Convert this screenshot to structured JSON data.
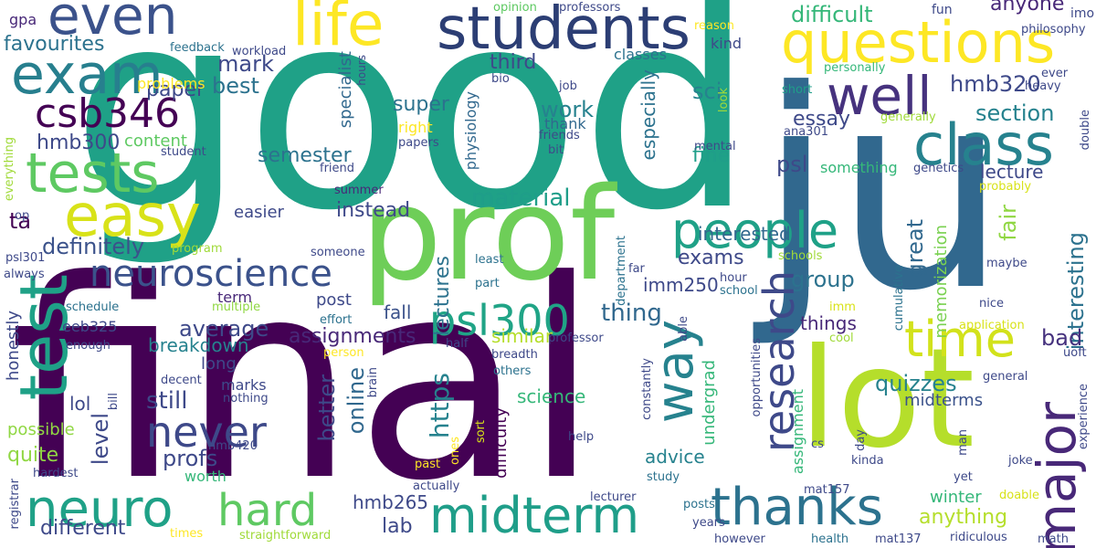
{
  "palette": [
    "#440154",
    "#46327e",
    "#365c8d",
    "#277f8e",
    "#1fa187",
    "#4ac16d",
    "#a0da39",
    "#fde725"
  ],
  "words": [
    {
      "text": "good",
      "color": "#1fa187"
    },
    {
      "text": "final",
      "color": "#440154"
    },
    {
      "text": "ju",
      "color": "#31688e"
    },
    {
      "text": "prof",
      "color": "#6ece58"
    },
    {
      "text": "lot",
      "color": "#b5de2b"
    },
    {
      "text": "test",
      "color": "#1fa187"
    },
    {
      "text": "students",
      "color": "#2c3e74"
    },
    {
      "text": "questions",
      "color": "#fde725"
    },
    {
      "text": "class",
      "color": "#26828e"
    },
    {
      "text": "even",
      "color": "#3b528b"
    },
    {
      "text": "life",
      "color": "#fde725"
    },
    {
      "text": "exam",
      "color": "#277f8e"
    },
    {
      "text": "well",
      "color": "#46327e"
    },
    {
      "text": "tests",
      "color": "#5ec962"
    },
    {
      "text": "easy",
      "color": "#d8e219"
    },
    {
      "text": "csb346",
      "color": "#440154"
    },
    {
      "text": "people",
      "color": "#1fa187"
    },
    {
      "text": "neuroscience",
      "color": "#3b528b"
    },
    {
      "text": "time",
      "color": "#d2e21b"
    },
    {
      "text": "major",
      "color": "#482878"
    },
    {
      "text": "way",
      "color": "#26828e"
    },
    {
      "text": "psl300",
      "color": "#20a486"
    },
    {
      "text": "never",
      "color": "#3e4989"
    },
    {
      "text": "neuro",
      "color": "#1fa187"
    },
    {
      "text": "hard",
      "color": "#5ec962"
    },
    {
      "text": "midterm",
      "color": "#1f9e89"
    },
    {
      "text": "thanks",
      "color": "#2c728e"
    },
    {
      "text": "research",
      "color": "#3e4989"
    },
    {
      "text": "favourites",
      "color": "#2c728e"
    },
    {
      "text": "mark",
      "color": "#3e4989"
    },
    {
      "text": "best",
      "color": "#2c728e"
    },
    {
      "text": "paper",
      "color": "#3e4989"
    },
    {
      "text": "difficult",
      "color": "#35b779"
    },
    {
      "text": "sci",
      "color": "#26828e"
    },
    {
      "text": "hmb300",
      "color": "#3e4989"
    },
    {
      "text": "definitely",
      "color": "#3b528b"
    },
    {
      "text": "ta",
      "color": "#440154"
    },
    {
      "text": "material",
      "color": "#1f9e89"
    },
    {
      "text": "hmb320",
      "color": "#3e4989"
    },
    {
      "text": "section",
      "color": "#26828e"
    },
    {
      "text": "essay",
      "color": "#3e4989"
    },
    {
      "text": "lecture",
      "color": "#3e4989"
    },
    {
      "text": "instead",
      "color": "#3e4989"
    },
    {
      "text": "semester",
      "color": "#2c728e"
    },
    {
      "text": "third",
      "color": "#3e4989"
    },
    {
      "text": "work",
      "color": "#26828e"
    },
    {
      "text": "super",
      "color": "#2c728e"
    },
    {
      "text": "fine",
      "color": "#1f9e89"
    },
    {
      "text": "anyone",
      "color": "#482878"
    },
    {
      "text": "interested",
      "color": "#31688e"
    },
    {
      "text": "exams",
      "color": "#3e4989"
    },
    {
      "text": "group",
      "color": "#2c728e"
    },
    {
      "text": "psl",
      "color": "#3e4989"
    },
    {
      "text": "great",
      "color": "#31688e"
    },
    {
      "text": "fair",
      "color": "#90d743"
    },
    {
      "text": "interesting",
      "color": "#2c728e"
    },
    {
      "text": "average",
      "color": "#3e4989"
    },
    {
      "text": "thing",
      "color": "#31688e"
    },
    {
      "text": "imm250",
      "color": "#3e4989"
    },
    {
      "text": "quizzes",
      "color": "#26828e"
    },
    {
      "text": "bad",
      "color": "#46327e"
    },
    {
      "text": "things",
      "color": "#482878"
    },
    {
      "text": "assignments",
      "color": "#482878"
    },
    {
      "text": "breakdown",
      "color": "#26828e"
    },
    {
      "text": "fall",
      "color": "#3b528b"
    },
    {
      "text": "similar",
      "color": "#b5de2b"
    },
    {
      "text": "still",
      "color": "#3e4989"
    },
    {
      "text": "profs",
      "color": "#3e4989"
    },
    {
      "text": "better",
      "color": "#3e4989"
    },
    {
      "text": "online",
      "color": "#31688e"
    },
    {
      "text": "https",
      "color": "#26828e"
    },
    {
      "text": "level",
      "color": "#3e4989"
    },
    {
      "text": "lol",
      "color": "#3e4989"
    },
    {
      "text": "science",
      "color": "#35b779"
    },
    {
      "text": "midterms",
      "color": "#3b528b"
    },
    {
      "text": "quite",
      "color": "#90d743"
    },
    {
      "text": "possible",
      "color": "#90d743"
    },
    {
      "text": "different",
      "color": "#3e4989"
    },
    {
      "text": "lab",
      "color": "#3e4989"
    },
    {
      "text": "hmb265",
      "color": "#3e4989"
    },
    {
      "text": "advice",
      "color": "#26828e"
    },
    {
      "text": "anything",
      "color": "#b5de2b"
    },
    {
      "text": "winter",
      "color": "#35b779"
    },
    {
      "text": "lectures",
      "color": "#2c728e"
    },
    {
      "text": "especially",
      "color": "#2c728e"
    },
    {
      "text": "content",
      "color": "#5ec962"
    },
    {
      "text": "kind",
      "color": "#3e4989"
    },
    {
      "text": "classes",
      "color": "#2c728e"
    },
    {
      "text": "right",
      "color": "#fde725"
    },
    {
      "text": "thank",
      "color": "#31688e"
    },
    {
      "text": "specialist",
      "color": "#31688e"
    },
    {
      "text": "physiology",
      "color": "#31688e"
    },
    {
      "text": "memorization",
      "color": "#7ad151"
    },
    {
      "text": "something",
      "color": "#35b779"
    },
    {
      "text": "easier",
      "color": "#3e4989"
    },
    {
      "text": "term",
      "color": "#482878"
    },
    {
      "text": "post",
      "color": "#3e4989"
    },
    {
      "text": "long",
      "color": "#3e4989"
    },
    {
      "text": "marks",
      "color": "#3e4989"
    },
    {
      "text": "worth",
      "color": "#35b779"
    },
    {
      "text": "undergrad",
      "color": "#35b779"
    },
    {
      "text": "assignment",
      "color": "#35b779"
    },
    {
      "text": "difficulty",
      "color": "#440154"
    },
    {
      "text": "eeb325",
      "color": "#3e4989"
    },
    {
      "text": "honestly",
      "color": "#3e4989"
    },
    {
      "text": "problems",
      "color": "#fde725"
    },
    {
      "text": "gpa",
      "color": "#482878"
    },
    {
      "text": "feedback",
      "color": "#2c728e"
    },
    {
      "text": "workload",
      "color": "#3e4989"
    },
    {
      "text": "opinion",
      "color": "#5ec962"
    },
    {
      "text": "professors",
      "color": "#3e4989"
    },
    {
      "text": "fun",
      "color": "#3e4989"
    },
    {
      "text": "imo",
      "color": "#3e4989"
    },
    {
      "text": "philosophy",
      "color": "#3e4989"
    },
    {
      "text": "reason",
      "color": "#fde725"
    },
    {
      "text": "hours",
      "color": "#3e4989"
    },
    {
      "text": "bio",
      "color": "#3e4989"
    },
    {
      "text": "job",
      "color": "#3e4989"
    },
    {
      "text": "look",
      "color": "#a0da39"
    },
    {
      "text": "personally",
      "color": "#35b779"
    },
    {
      "text": "ever",
      "color": "#3e4989"
    },
    {
      "text": "heavy",
      "color": "#3e4989"
    },
    {
      "text": "short",
      "color": "#1f9e89"
    },
    {
      "text": "generally",
      "color": "#a0da39"
    },
    {
      "text": "double",
      "color": "#3e4989"
    },
    {
      "text": "student",
      "color": "#3e4989"
    },
    {
      "text": "friends",
      "color": "#3e4989"
    },
    {
      "text": "papers",
      "color": "#3e4989"
    },
    {
      "text": "bit",
      "color": "#3e4989"
    },
    {
      "text": "mental",
      "color": "#3e4989"
    },
    {
      "text": "ana301",
      "color": "#3e4989"
    },
    {
      "text": "genetics",
      "color": "#3e4989"
    },
    {
      "text": "friend",
      "color": "#3e4989"
    },
    {
      "text": "summer",
      "color": "#482878"
    },
    {
      "text": "probably",
      "color": "#d8e219"
    },
    {
      "text": "everything",
      "color": "#a0da39"
    },
    {
      "text": "op",
      "color": "#3e4989"
    },
    {
      "text": "program",
      "color": "#a0da39"
    },
    {
      "text": "psl301",
      "color": "#3e4989"
    },
    {
      "text": "always",
      "color": "#3e4989"
    },
    {
      "text": "someone",
      "color": "#3e4989"
    },
    {
      "text": "least",
      "color": "#2c728e"
    },
    {
      "text": "part",
      "color": "#2c728e"
    },
    {
      "text": "department",
      "color": "#2c728e"
    },
    {
      "text": "far",
      "color": "#3e4989"
    },
    {
      "text": "hour",
      "color": "#3e4989"
    },
    {
      "text": "school",
      "color": "#2c728e"
    },
    {
      "text": "schools",
      "color": "#a0da39"
    },
    {
      "text": "maybe",
      "color": "#3e4989"
    },
    {
      "text": "nice",
      "color": "#3e4989"
    },
    {
      "text": "cumulative",
      "color": "#2c728e"
    },
    {
      "text": "schedule",
      "color": "#2c728e"
    },
    {
      "text": "multiple",
      "color": "#90d743"
    },
    {
      "text": "effort",
      "color": "#2c728e"
    },
    {
      "text": "imm",
      "color": "#d8e219"
    },
    {
      "text": "cool",
      "color": "#a0da39"
    },
    {
      "text": "application",
      "color": "#d8e219"
    },
    {
      "text": "enough",
      "color": "#3e4989"
    },
    {
      "text": "half",
      "color": "#3e4989"
    },
    {
      "text": "professor",
      "color": "#3e4989"
    },
    {
      "text": "uoft",
      "color": "#3e4989"
    },
    {
      "text": "person",
      "color": "#fde725"
    },
    {
      "text": "breadth",
      "color": "#3e4989"
    },
    {
      "text": "others",
      "color": "#2c728e"
    },
    {
      "text": "able",
      "color": "#3e4989"
    },
    {
      "text": "opportunities",
      "color": "#3e4989"
    },
    {
      "text": "general",
      "color": "#3e4989"
    },
    {
      "text": "decent",
      "color": "#3e4989"
    },
    {
      "text": "nothing",
      "color": "#3e4989"
    },
    {
      "text": "brain",
      "color": "#3e4989"
    },
    {
      "text": "bill",
      "color": "#3e4989"
    },
    {
      "text": "constantly",
      "color": "#3e4989"
    },
    {
      "text": "experience",
      "color": "#3e4989"
    },
    {
      "text": "sort",
      "color": "#d8e219"
    },
    {
      "text": "help",
      "color": "#3e4989"
    },
    {
      "text": "day",
      "color": "#3e4989"
    },
    {
      "text": "man",
      "color": "#3e4989"
    },
    {
      "text": "hmb420",
      "color": "#3e4989"
    },
    {
      "text": "cs",
      "color": "#3e4989"
    },
    {
      "text": "kinda",
      "color": "#3e4989"
    },
    {
      "text": "joke",
      "color": "#3e4989"
    },
    {
      "text": "hardest",
      "color": "#3e4989"
    },
    {
      "text": "past",
      "color": "#fde725"
    },
    {
      "text": "ones",
      "color": "#fde725"
    },
    {
      "text": "actually",
      "color": "#3e4989"
    },
    {
      "text": "study",
      "color": "#2c728e"
    },
    {
      "text": "yet",
      "color": "#3e4989"
    },
    {
      "text": "lecturer",
      "color": "#3e4989"
    },
    {
      "text": "mat157",
      "color": "#3e4989"
    },
    {
      "text": "doable",
      "color": "#d8e219"
    },
    {
      "text": "registrar",
      "color": "#3e4989"
    },
    {
      "text": "times",
      "color": "#fde725"
    },
    {
      "text": "straightforward",
      "color": "#a0da39"
    },
    {
      "text": "however",
      "color": "#3e4989"
    },
    {
      "text": "posts",
      "color": "#2c728e"
    },
    {
      "text": "years",
      "color": "#3e4989"
    },
    {
      "text": "health",
      "color": "#2c728e"
    },
    {
      "text": "mat137",
      "color": "#3e4989"
    },
    {
      "text": "ridiculous",
      "color": "#3e4989"
    },
    {
      "text": "math",
      "color": "#3e4989"
    }
  ]
}
